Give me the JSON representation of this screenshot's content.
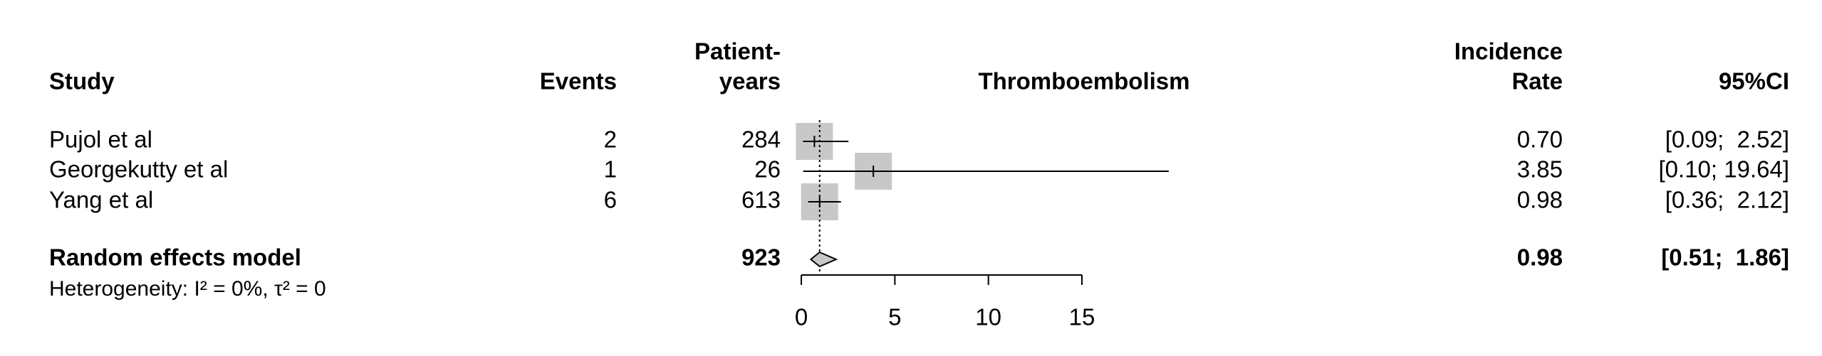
{
  "chart_data": {
    "type": "forest",
    "headers": {
      "study": "Study",
      "events": "Events",
      "py_line1": "Patient-",
      "py_line2": "years",
      "plot": "Thromboembolism",
      "rate_line1": "Incidence",
      "rate_line2": "Rate",
      "ci": "95%CI"
    },
    "studies": [
      {
        "name": "Pujol et al",
        "events": 2,
        "patient_years": 284,
        "rate": 0.7,
        "rate_label": "0.70",
        "lower": 0.09,
        "upper": 2.52,
        "ci_label": "[0.09;  2.52]"
      },
      {
        "name": "Georgekutty et al",
        "events": 1,
        "patient_years": 26,
        "rate": 3.85,
        "rate_label": "3.85",
        "lower": 0.1,
        "upper": 19.64,
        "ci_label": "[0.10; 19.64]"
      },
      {
        "name": "Yang et al",
        "events": 6,
        "patient_years": 613,
        "rate": 0.98,
        "rate_label": "0.98",
        "lower": 0.36,
        "upper": 2.12,
        "ci_label": "[0.36;  2.12]"
      }
    ],
    "model": {
      "name": "Random effects model",
      "patient_years": 923,
      "rate": 0.98,
      "rate_label": "0.98",
      "lower": 0.51,
      "upper": 1.86,
      "ci_label": "[0.51;  1.86]"
    },
    "heterogeneity": "Heterogeneity: I² = 0%, τ² = 0",
    "xlim": [
      0,
      15
    ],
    "xticks": [
      0,
      5,
      10,
      15
    ],
    "square_color": "#c8c8c8",
    "line_color": "#000000"
  }
}
